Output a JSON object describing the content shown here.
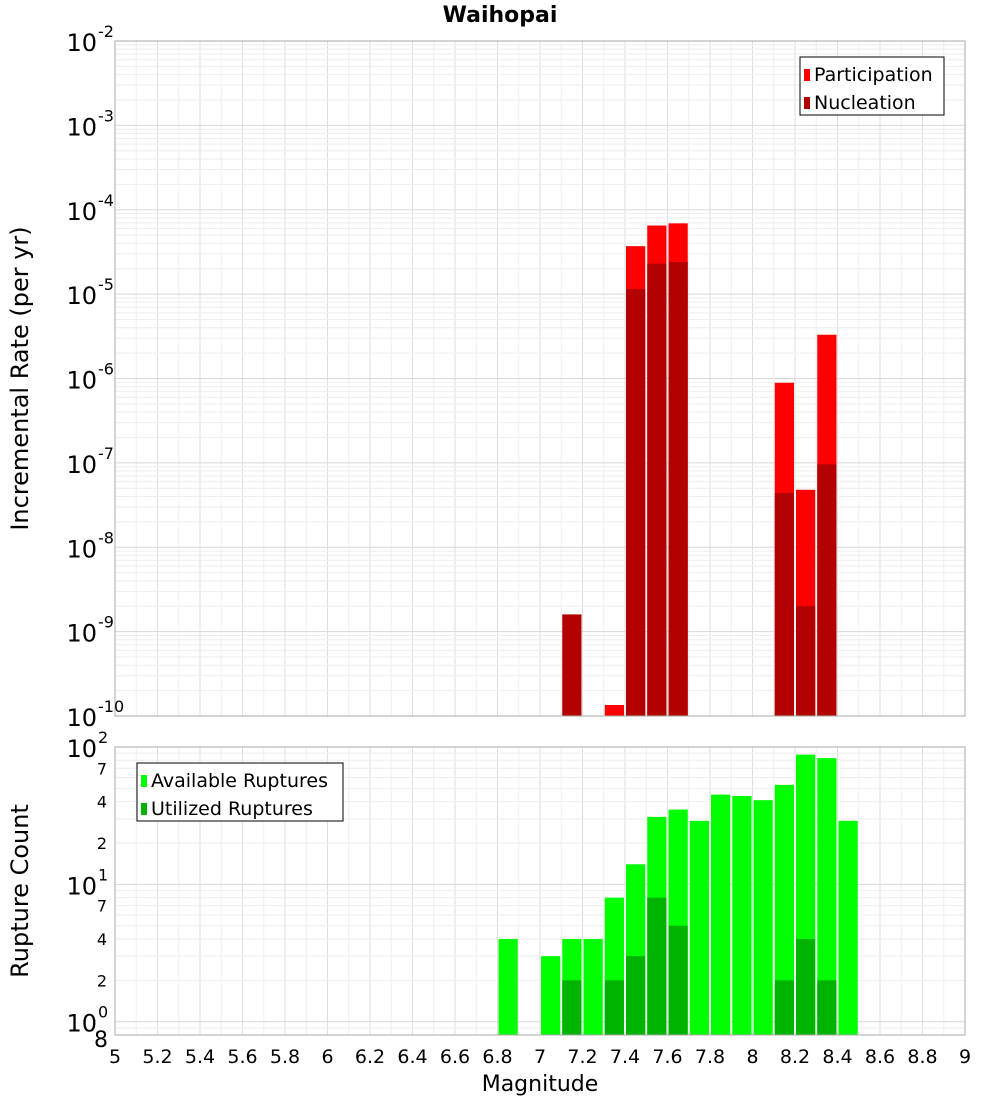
{
  "chart_data": [
    {
      "type": "bar",
      "title": "Waihopai",
      "ylabel": "Incremental Rate (per yr)",
      "xlabel": "",
      "xlim": [
        5,
        9
      ],
      "ylim": [
        1e-10,
        0.01
      ],
      "yscale": "log",
      "bin_width": 0.1,
      "grid": true,
      "legend_position": "top-right",
      "series": [
        {
          "name": "Participation",
          "color": "#ff0000",
          "points": [
            {
              "x": 7.35,
              "y": 1.35e-10
            },
            {
              "x": 7.45,
              "y": 3.7e-05
            },
            {
              "x": 7.55,
              "y": 6.5e-05
            },
            {
              "x": 7.65,
              "y": 6.9e-05
            },
            {
              "x": 8.15,
              "y": 8.9e-07
            },
            {
              "x": 8.25,
              "y": 4.8e-08
            },
            {
              "x": 8.35,
              "y": 3.3e-06
            }
          ]
        },
        {
          "name": "Nucleation",
          "color": "#b30000",
          "points": [
            {
              "x": 7.15,
              "y": 1.6e-09
            },
            {
              "x": 7.45,
              "y": 1.15e-05
            },
            {
              "x": 7.55,
              "y": 2.3e-05
            },
            {
              "x": 7.65,
              "y": 2.4e-05
            },
            {
              "x": 8.15,
              "y": 4.4e-08
            },
            {
              "x": 8.25,
              "y": 2e-09
            },
            {
              "x": 8.35,
              "y": 9.6e-08
            }
          ]
        }
      ],
      "y_ticks": [
        {
          "base": "10",
          "exp": "-10"
        },
        {
          "base": "10",
          "exp": "-9"
        },
        {
          "base": "10",
          "exp": "-8"
        },
        {
          "base": "10",
          "exp": "-7"
        },
        {
          "base": "10",
          "exp": "-6"
        },
        {
          "base": "10",
          "exp": "-5"
        },
        {
          "base": "10",
          "exp": "-4"
        },
        {
          "base": "10",
          "exp": "-3"
        },
        {
          "base": "10",
          "exp": "-2"
        }
      ]
    },
    {
      "type": "bar",
      "title": "",
      "ylabel": "Rupture Count",
      "xlabel": "Magnitude",
      "xlim": [
        5,
        9
      ],
      "ylim": [
        0.8,
        100
      ],
      "yscale": "log",
      "bin_width": 0.1,
      "grid": true,
      "legend_position": "top-left",
      "series": [
        {
          "name": "Available Ruptures",
          "color": "#00ff00",
          "points": [
            {
              "x": 6.85,
              "y": 4
            },
            {
              "x": 7.05,
              "y": 3
            },
            {
              "x": 7.15,
              "y": 4
            },
            {
              "x": 7.25,
              "y": 4
            },
            {
              "x": 7.35,
              "y": 8
            },
            {
              "x": 7.45,
              "y": 14
            },
            {
              "x": 7.55,
              "y": 31
            },
            {
              "x": 7.65,
              "y": 35
            },
            {
              "x": 7.75,
              "y": 29
            },
            {
              "x": 7.85,
              "y": 45
            },
            {
              "x": 7.95,
              "y": 44
            },
            {
              "x": 8.05,
              "y": 41
            },
            {
              "x": 8.15,
              "y": 53
            },
            {
              "x": 8.25,
              "y": 88
            },
            {
              "x": 8.35,
              "y": 83
            },
            {
              "x": 8.45,
              "y": 29
            }
          ]
        },
        {
          "name": "Utilized Ruptures",
          "color": "#00b300",
          "points": [
            {
              "x": 7.15,
              "y": 2
            },
            {
              "x": 7.35,
              "y": 2
            },
            {
              "x": 7.45,
              "y": 3
            },
            {
              "x": 7.55,
              "y": 8
            },
            {
              "x": 7.65,
              "y": 5
            },
            {
              "x": 8.15,
              "y": 2
            },
            {
              "x": 8.25,
              "y": 4
            },
            {
              "x": 8.35,
              "y": 2
            }
          ]
        }
      ],
      "y_ticks": [
        {
          "base": "10",
          "exp": "0",
          "value": 1
        },
        {
          "label": "2",
          "value": 2
        },
        {
          "label": "4",
          "value": 4
        },
        {
          "label": "7",
          "value": 7
        },
        {
          "base": "10",
          "exp": "1",
          "value": 10
        },
        {
          "label": "2",
          "value": 20
        },
        {
          "label": "4",
          "value": 40
        },
        {
          "label": "7",
          "value": 70
        },
        {
          "base": "10",
          "exp": "2",
          "value": 100
        }
      ],
      "y_min_label": "8",
      "x_ticks": [
        "5",
        "5.2",
        "5.4",
        "5.6",
        "5.8",
        "6",
        "6.2",
        "6.4",
        "6.6",
        "6.8",
        "7",
        "7.2",
        "7.4",
        "7.6",
        "7.8",
        "8",
        "8.2",
        "8.4",
        "8.6",
        "8.8",
        "9"
      ]
    }
  ]
}
